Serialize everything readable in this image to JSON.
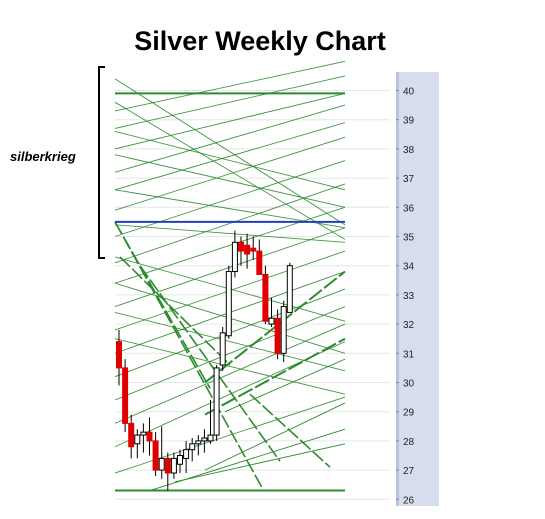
{
  "chart_data": {
    "type": "candlestick",
    "title": "Silver Weekly Chart",
    "annotation": "silberkrieg",
    "xlabel": "",
    "ylabel": "",
    "ylim": [
      25.9,
      41.4
    ],
    "y_ticks": [
      26,
      27,
      28,
      29,
      30,
      31,
      32,
      33,
      34,
      35,
      36,
      37,
      38,
      39,
      40
    ],
    "y_axis_side": "right",
    "grid": true,
    "colors": {
      "up": "#ffffff",
      "down": "#e00000",
      "trendline": "#2e8b2e",
      "resistance": "#1f3fbf",
      "axis_panel": "#d6deee"
    },
    "horizontal_lines": [
      {
        "role": "top-level",
        "y": 39.9,
        "color": "#2e8b2e"
      },
      {
        "role": "resistance",
        "y": 35.5,
        "color": "#1f3fbf"
      },
      {
        "role": "bottom-level",
        "y": 26.3,
        "color": "#2e8b2e"
      }
    ],
    "candles": [
      {
        "open": 31.4,
        "high": 31.8,
        "low": 29.9,
        "close": 30.5
      },
      {
        "open": 30.5,
        "high": 30.8,
        "low": 28.3,
        "close": 28.6
      },
      {
        "open": 28.6,
        "high": 28.9,
        "low": 27.4,
        "close": 27.8
      },
      {
        "open": 27.9,
        "high": 28.4,
        "low": 27.4,
        "close": 28.2
      },
      {
        "open": 28.2,
        "high": 28.6,
        "low": 27.6,
        "close": 28.3
      },
      {
        "open": 28.3,
        "high": 28.8,
        "low": 27.5,
        "close": 28.0
      },
      {
        "open": 28.0,
        "high": 28.3,
        "low": 26.8,
        "close": 27.0
      },
      {
        "open": 27.0,
        "high": 28.5,
        "low": 26.7,
        "close": 27.4
      },
      {
        "open": 27.4,
        "high": 27.6,
        "low": 26.3,
        "close": 26.9
      },
      {
        "open": 26.9,
        "high": 27.6,
        "low": 26.7,
        "close": 27.4
      },
      {
        "open": 27.2,
        "high": 27.7,
        "low": 26.9,
        "close": 27.5
      },
      {
        "open": 27.4,
        "high": 28.0,
        "low": 26.9,
        "close": 27.7
      },
      {
        "open": 27.7,
        "high": 28.1,
        "low": 27.3,
        "close": 27.9
      },
      {
        "open": 27.9,
        "high": 28.2,
        "low": 27.5,
        "close": 28.0
      },
      {
        "open": 28.0,
        "high": 28.4,
        "low": 27.6,
        "close": 28.1
      },
      {
        "open": 28.0,
        "high": 29.4,
        "low": 27.9,
        "close": 28.2
      },
      {
        "open": 28.2,
        "high": 30.6,
        "low": 28.0,
        "close": 30.5
      },
      {
        "open": 30.6,
        "high": 31.9,
        "low": 30.4,
        "close": 31.7
      },
      {
        "open": 31.6,
        "high": 34.0,
        "low": 31.5,
        "close": 33.8
      },
      {
        "open": 33.8,
        "high": 35.2,
        "low": 33.6,
        "close": 34.8
      },
      {
        "open": 34.8,
        "high": 35.0,
        "low": 34.0,
        "close": 34.5
      },
      {
        "open": 34.7,
        "high": 35.1,
        "low": 33.9,
        "close": 34.4
      },
      {
        "open": 34.6,
        "high": 35.0,
        "low": 34.2,
        "close": 34.5
      },
      {
        "open": 34.5,
        "high": 34.9,
        "low": 33.7,
        "close": 33.7
      },
      {
        "open": 33.7,
        "high": 34.0,
        "low": 32.0,
        "close": 32.1
      },
      {
        "open": 32.0,
        "high": 32.9,
        "low": 31.9,
        "close": 32.2
      },
      {
        "open": 32.2,
        "high": 32.5,
        "low": 30.8,
        "close": 31.0
      },
      {
        "open": 31.0,
        "high": 32.8,
        "low": 30.7,
        "close": 32.6
      },
      {
        "open": 32.4,
        "high": 34.1,
        "low": 32.4,
        "close": 34.0
      }
    ]
  }
}
